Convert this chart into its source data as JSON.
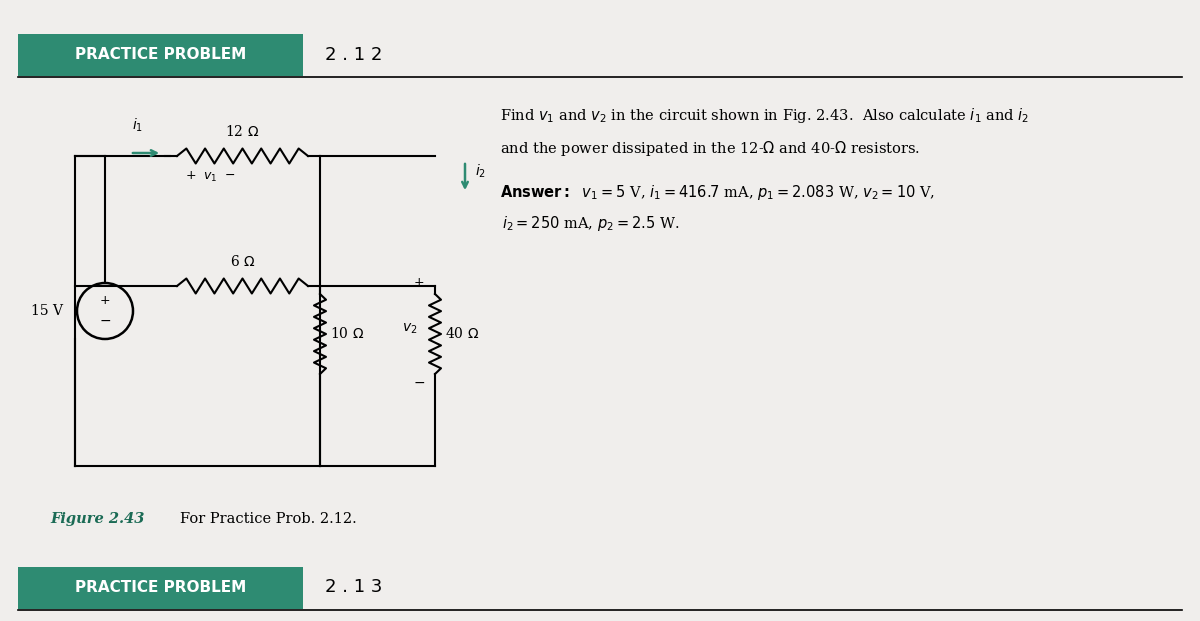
{
  "title_text": "PRACTICE PROBLEM",
  "title_number": "2 . 1 2",
  "title_number2": "2 . 1 3",
  "teal_color": "#2E8B72",
  "bg_color": "#F0EEEC",
  "white": "#FFFFFF",
  "black": "#000000",
  "teal_text": "#1B6B55",
  "figure_caption": "Figure 2.43",
  "figure_sub": "For Practice Prob. 2.12."
}
